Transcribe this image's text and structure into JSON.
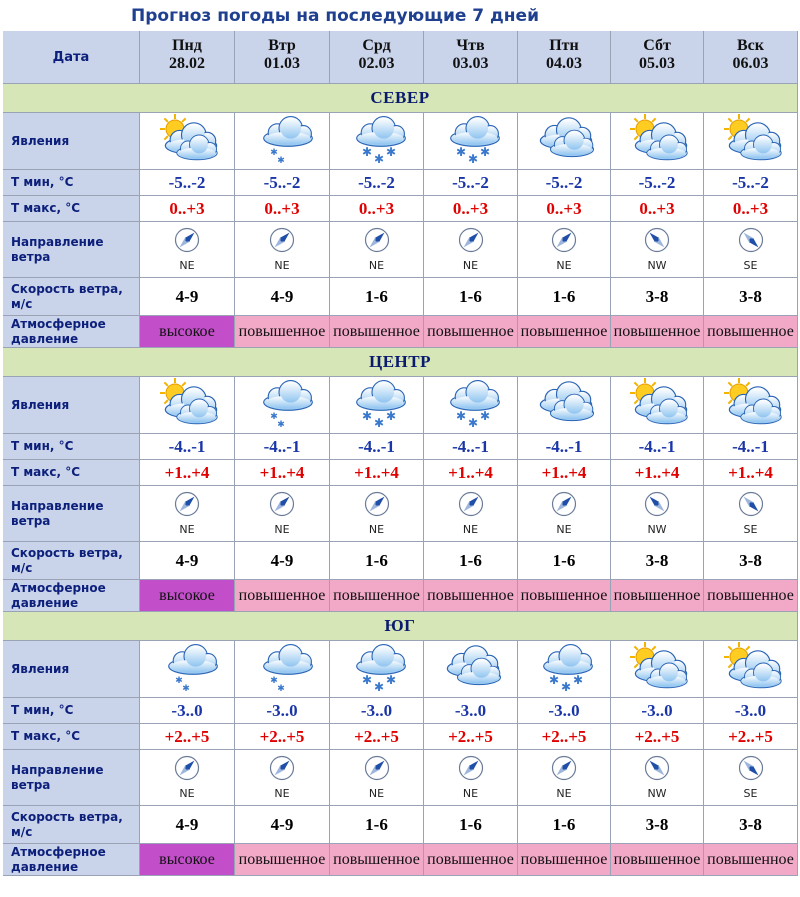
{
  "title": "Прогноз погоды на последующие 7 дней",
  "header_label": "Дата",
  "days": [
    {
      "name": "Пнд",
      "date": "28.02"
    },
    {
      "name": "Втр",
      "date": "01.03"
    },
    {
      "name": "Срд",
      "date": "02.03"
    },
    {
      "name": "Чтв",
      "date": "03.03"
    },
    {
      "name": "Птн",
      "date": "04.03"
    },
    {
      "name": "Сбт",
      "date": "05.03"
    },
    {
      "name": "Вск",
      "date": "06.03"
    }
  ],
  "row_labels": {
    "phen": "Явления",
    "tmin": "Т мин, °С",
    "tmax": "Т макс, °С",
    "wind": "Направление ветра",
    "speed": "Скорость ветра, м/с",
    "pressure": "Атмосферное давление"
  },
  "regions": [
    {
      "name": "СЕВЕР",
      "phen": [
        "cloud-sun-icon",
        "cloud-snow-light-icon",
        "cloud-snow-icon",
        "cloud-snow-icon",
        "cloud-icon",
        "cloud-sun-icon",
        "cloud-sun-icon"
      ],
      "tmin": [
        "-5..-2",
        "-5..-2",
        "-5..-2",
        "-5..-2",
        "-5..-2",
        "-5..-2",
        "-5..-2"
      ],
      "tmax": [
        "0..+3",
        "0..+3",
        "0..+3",
        "0..+3",
        "0..+3",
        "0..+3",
        "0..+3"
      ],
      "wind": [
        "NE",
        "NE",
        "NE",
        "NE",
        "NE",
        "NW",
        "SE"
      ],
      "speed": [
        "4-9",
        "4-9",
        "1-6",
        "1-6",
        "1-6",
        "3-8",
        "3-8"
      ],
      "pressure": [
        "высокое",
        "повышенное",
        "повышенное",
        "повышенное",
        "повышенное",
        "повышенное",
        "повышенное"
      ]
    },
    {
      "name": "ЦЕНТР",
      "phen": [
        "cloud-sun-icon",
        "cloud-snow-light-icon",
        "cloud-snow-icon",
        "cloud-snow-icon",
        "cloud-icon",
        "cloud-sun-icon",
        "cloud-sun-icon"
      ],
      "tmin": [
        "-4..-1",
        "-4..-1",
        "-4..-1",
        "-4..-1",
        "-4..-1",
        "-4..-1",
        "-4..-1"
      ],
      "tmax": [
        "+1..+4",
        "+1..+4",
        "+1..+4",
        "+1..+4",
        "+1..+4",
        "+1..+4",
        "+1..+4"
      ],
      "wind": [
        "NE",
        "NE",
        "NE",
        "NE",
        "NE",
        "NW",
        "SE"
      ],
      "speed": [
        "4-9",
        "4-9",
        "1-6",
        "1-6",
        "1-6",
        "3-8",
        "3-8"
      ],
      "pressure": [
        "высокое",
        "повышенное",
        "повышенное",
        "повышенное",
        "повышенное",
        "повышенное",
        "повышенное"
      ]
    },
    {
      "name": "ЮГ",
      "phen": [
        "cloud-snow-light-icon",
        "cloud-snow-light-icon",
        "cloud-snow-icon",
        "cloud-icon",
        "cloud-snow-icon",
        "cloud-sun-icon",
        "cloud-sun-icon"
      ],
      "tmin": [
        "-3..0",
        "-3..0",
        "-3..0",
        "-3..0",
        "-3..0",
        "-3..0",
        "-3..0"
      ],
      "tmax": [
        "+2..+5",
        "+2..+5",
        "+2..+5",
        "+2..+5",
        "+2..+5",
        "+2..+5",
        "+2..+5"
      ],
      "wind": [
        "NE",
        "NE",
        "NE",
        "NE",
        "NE",
        "NW",
        "SE"
      ],
      "speed": [
        "4-9",
        "4-9",
        "1-6",
        "1-6",
        "1-6",
        "3-8",
        "3-8"
      ],
      "pressure": [
        "высокое",
        "повышенное",
        "повышенное",
        "повышенное",
        "повышенное",
        "повышенное",
        "повышенное"
      ]
    }
  ],
  "colors": {
    "label_bg": "#c9d3ea",
    "region_bg": "#d6e6b7",
    "pressure_high": "#c24ec9",
    "pressure_raised": "#f2a9c8",
    "tmin": "#1a35a8",
    "tmax": "#e00000"
  }
}
